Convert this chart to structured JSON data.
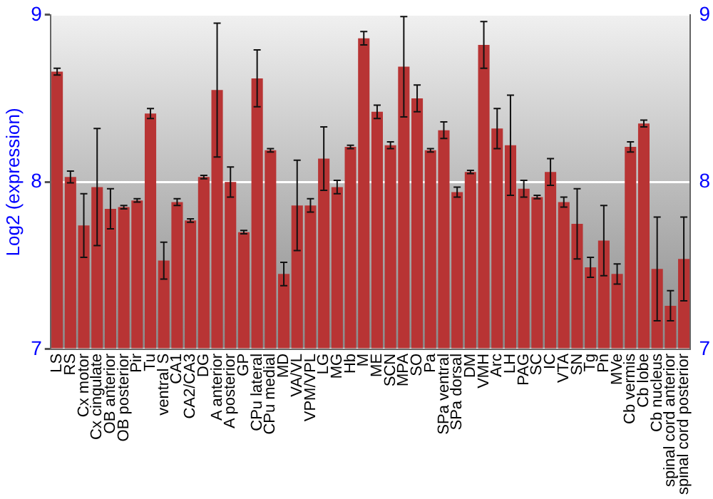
{
  "chart_data": {
    "type": "bar",
    "ylabel": "Log2 (expression)",
    "categories": [
      "LS",
      "RS",
      "Cx motor",
      "Cx cingulate",
      "OB anterior",
      "OB posterior",
      "Pir",
      "Tu",
      "ventral S",
      "CA1",
      "CA2/CA3",
      "DG",
      "A anterior",
      "A posterior",
      "GP",
      "CPu lateral",
      "CPu medial",
      "MD",
      "VA/VL",
      "VPM/VPL",
      "LG",
      "MG",
      "Hb",
      "M",
      "ME",
      "SCN",
      "MPA",
      "SO",
      "Pa",
      "SPa ventral",
      "SPa dorsal",
      "DM",
      "VMH",
      "Arc",
      "LH",
      "PAG",
      "SC",
      "IC",
      "VTA",
      "SN",
      "Tg",
      "Pn",
      "MVe",
      "Cb vermis",
      "Cb lobe",
      "Cb nucleus",
      "spinal cord anterior",
      "spinal cord posterior"
    ],
    "values": [
      8.66,
      8.03,
      7.74,
      7.97,
      7.84,
      7.85,
      7.89,
      8.41,
      7.53,
      7.88,
      7.77,
      8.03,
      8.55,
      8.0,
      7.7,
      8.62,
      8.19,
      7.45,
      7.86,
      7.86,
      8.14,
      7.97,
      8.21,
      8.86,
      8.42,
      8.22,
      8.69,
      8.5,
      8.19,
      8.31,
      7.94,
      8.06,
      8.82,
      8.32,
      8.22,
      7.96,
      7.91,
      8.06,
      7.88,
      7.75,
      7.49,
      7.65,
      7.45,
      8.21,
      8.35,
      7.48,
      7.26,
      7.54
    ],
    "errors": [
      0.02,
      0.035,
      0.19,
      0.35,
      0.12,
      0.01,
      0.01,
      0.03,
      0.11,
      0.02,
      0.01,
      0.01,
      0.4,
      0.09,
      0.01,
      0.17,
      0.01,
      0.07,
      0.27,
      0.04,
      0.19,
      0.04,
      0.01,
      0.04,
      0.04,
      0.02,
      0.3,
      0.08,
      0.01,
      0.05,
      0.03,
      0.01,
      0.14,
      0.12,
      0.3,
      0.05,
      0.01,
      0.08,
      0.03,
      0.21,
      0.06,
      0.21,
      0.06,
      0.03,
      0.02,
      0.31,
      0.09,
      0.25
    ],
    "color": "#b83434",
    "ylim": [
      7,
      9
    ],
    "yticks": [
      7,
      8,
      9
    ],
    "y2lim": [
      7,
      9
    ],
    "y2ticks": [
      7,
      8,
      9
    ],
    "grid": "y",
    "legend": false
  }
}
